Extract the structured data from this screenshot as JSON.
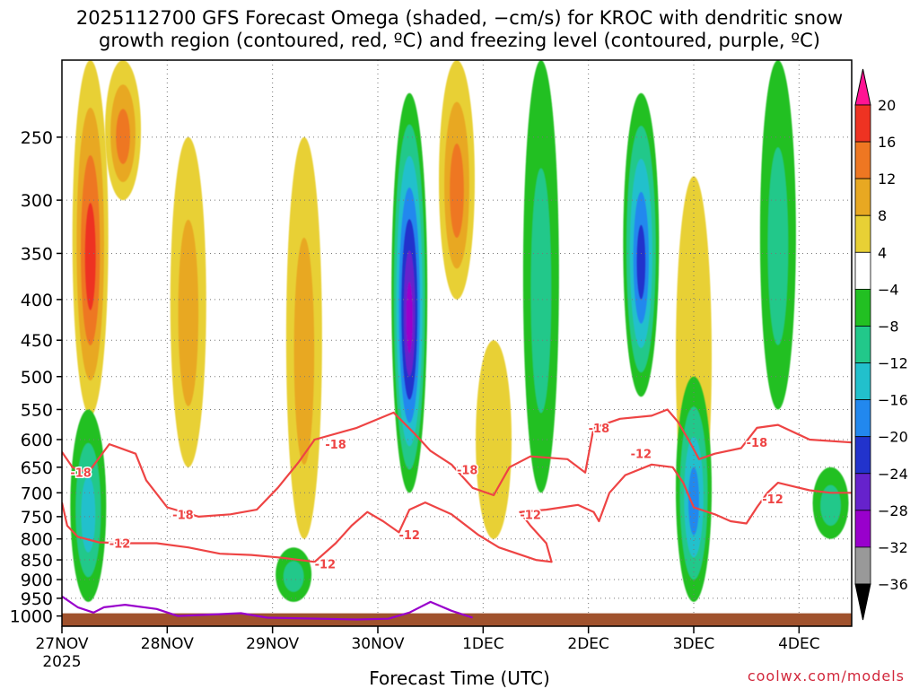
{
  "title": {
    "line1": "2025112700 GFS Forecast Omega (shaded, −cm/s) for KROC with dendritic snow",
    "line2": "growth region (contoured, red, ºC) and freezing level (contoured, purple, ºC)"
  },
  "footer": {
    "xlabel": "Forecast Time (UTC)",
    "credit": "coolwx.com/models"
  },
  "colors": {
    "dgz_contour": "#ee4444",
    "freezing_contour": "#9900cc",
    "terrain": "#a0522d",
    "grid": "#777777"
  },
  "chart_data": {
    "type": "heatmap",
    "title": "2025112700 GFS Forecast Omega (shaded, −cm/s) for KROC with dendritic snow growth region (contoured, red, ºC) and freezing level (contoured, purple, ºC)",
    "xlabel": "Forecast Time (UTC)",
    "ylabel": "",
    "x_ticks": [
      "27NOV",
      "28NOV",
      "29NOV",
      "30NOV",
      "1DEC",
      "2DEC",
      "3DEC",
      "4DEC"
    ],
    "x_tick_sublabel": "2025",
    "x_range_days": [
      0,
      7.5
    ],
    "y_ticks": [
      250,
      300,
      350,
      400,
      450,
      500,
      550,
      600,
      650,
      700,
      750,
      800,
      850,
      900,
      950,
      1000
    ],
    "y_range_hpa": [
      200,
      1030
    ],
    "y_scale": "log-pressure (inverted)",
    "grid": "dotted",
    "colorbar": {
      "labels": [
        "20",
        "16",
        "12",
        "8",
        "4",
        "−4",
        "−8",
        "−12",
        "−16",
        "−20",
        "−24",
        "−28",
        "−32",
        "−36"
      ],
      "levels": [
        20,
        16,
        12,
        8,
        4,
        -4,
        -8,
        -12,
        -16,
        -20,
        -24,
        -28,
        -32,
        -36
      ],
      "colors": [
        "#ff1493",
        "#ee3322",
        "#ee7722",
        "#e8a822",
        "#e8d035",
        "#ffffff",
        "#22c022",
        "#22c88a",
        "#22c0cc",
        "#2288ee",
        "#2233cc",
        "#6622cc",
        "#9900cc",
        "#999999",
        "#000000"
      ]
    },
    "omega_features": [
      {
        "sign": "positive",
        "day": 0.27,
        "p_top": 200,
        "p_bottom": 560,
        "peak": 16
      },
      {
        "sign": "positive",
        "day": 0.58,
        "p_top": 200,
        "p_bottom": 300,
        "peak": 12
      },
      {
        "sign": "positive",
        "day": 1.2,
        "p_top": 250,
        "p_bottom": 650,
        "peak": 8
      },
      {
        "sign": "positive",
        "day": 2.3,
        "p_top": 250,
        "p_bottom": 800,
        "peak": 8
      },
      {
        "sign": "positive",
        "day": 3.75,
        "p_top": 200,
        "p_bottom": 400,
        "peak": 12
      },
      {
        "sign": "positive",
        "day": 4.1,
        "p_top": 450,
        "p_bottom": 800,
        "peak": 4
      },
      {
        "sign": "positive",
        "day": 6.0,
        "p_top": 280,
        "p_bottom": 800,
        "peak": 4
      },
      {
        "sign": "negative",
        "day": 0.25,
        "p_top": 550,
        "p_bottom": 960,
        "peak": -12
      },
      {
        "sign": "negative",
        "day": 2.2,
        "p_top": 820,
        "p_bottom": 960,
        "peak": -8
      },
      {
        "sign": "negative",
        "day": 3.3,
        "p_top": 220,
        "p_bottom": 700,
        "peak": -28
      },
      {
        "sign": "negative",
        "day": 4.55,
        "p_top": 200,
        "p_bottom": 700,
        "peak": -8
      },
      {
        "sign": "negative",
        "day": 5.5,
        "p_top": 220,
        "p_bottom": 530,
        "peak": -20
      },
      {
        "sign": "negative",
        "day": 6.0,
        "p_top": 500,
        "p_bottom": 960,
        "peak": -16
      },
      {
        "sign": "negative",
        "day": 6.8,
        "p_top": 200,
        "p_bottom": 550,
        "peak": -8
      },
      {
        "sign": "negative",
        "day": 7.3,
        "p_top": 650,
        "p_bottom": 800,
        "peak": -8
      }
    ],
    "contour_labels": [
      {
        "text": "-18",
        "day": 0.18,
        "p": 660
      },
      {
        "text": "-18",
        "day": 1.15,
        "p": 745
      },
      {
        "text": "-12",
        "day": 0.55,
        "p": 810
      },
      {
        "text": "-12",
        "day": 2.5,
        "p": 860
      },
      {
        "text": "-18",
        "day": 2.6,
        "p": 608
      },
      {
        "text": "-12",
        "day": 3.3,
        "p": 790
      },
      {
        "text": "-18",
        "day": 3.85,
        "p": 655
      },
      {
        "text": "-12",
        "day": 4.45,
        "p": 745
      },
      {
        "text": "-18",
        "day": 5.1,
        "p": 580
      },
      {
        "text": "-12",
        "day": 5.5,
        "p": 625
      },
      {
        "text": "-18",
        "day": 6.6,
        "p": 605
      },
      {
        "text": "-12",
        "day": 6.75,
        "p": 712
      }
    ],
    "minus18_contour": [
      [
        0,
        622
      ],
      [
        0.1,
        650
      ],
      [
        0.25,
        660
      ],
      [
        0.45,
        608
      ],
      [
        0.7,
        625
      ],
      [
        0.8,
        675
      ],
      [
        1.0,
        730
      ],
      [
        1.3,
        750
      ],
      [
        1.6,
        745
      ],
      [
        1.85,
        735
      ],
      [
        2.05,
        690
      ],
      [
        2.25,
        640
      ],
      [
        2.4,
        600
      ],
      [
        2.8,
        580
      ],
      [
        3.15,
        555
      ],
      [
        3.35,
        590
      ],
      [
        3.5,
        620
      ],
      [
        3.7,
        645
      ],
      [
        3.9,
        690
      ],
      [
        4.1,
        705
      ],
      [
        4.25,
        650
      ],
      [
        4.45,
        630
      ],
      [
        4.8,
        635
      ],
      [
        4.97,
        660
      ],
      [
        5.05,
        580
      ],
      [
        5.3,
        565
      ],
      [
        5.6,
        560
      ],
      [
        5.75,
        550
      ],
      [
        5.85,
        570
      ],
      [
        5.95,
        600
      ],
      [
        6.05,
        635
      ],
      [
        6.2,
        625
      ],
      [
        6.45,
        615
      ],
      [
        6.6,
        580
      ],
      [
        6.8,
        575
      ],
      [
        7.1,
        600
      ],
      [
        7.5,
        605
      ]
    ],
    "minus12_contour": [
      [
        0,
        720
      ],
      [
        0.05,
        770
      ],
      [
        0.15,
        795
      ],
      [
        0.35,
        808
      ],
      [
        0.6,
        810
      ],
      [
        0.9,
        810
      ],
      [
        1.2,
        820
      ],
      [
        1.5,
        835
      ],
      [
        1.8,
        838
      ],
      [
        2.1,
        845
      ],
      [
        2.4,
        855
      ],
      [
        2.6,
        810
      ],
      [
        2.75,
        770
      ],
      [
        2.9,
        740
      ],
      [
        3.05,
        760
      ],
      [
        3.2,
        785
      ],
      [
        3.3,
        735
      ],
      [
        3.45,
        720
      ],
      [
        3.7,
        745
      ],
      [
        3.95,
        790
      ],
      [
        4.15,
        820
      ],
      [
        4.5,
        850
      ],
      [
        4.65,
        855
      ],
      [
        4.6,
        810
      ],
      [
        4.45,
        770
      ],
      [
        4.35,
        740
      ],
      [
        4.6,
        735
      ],
      [
        4.9,
        725
      ],
      [
        5.05,
        740
      ],
      [
        5.1,
        760
      ],
      [
        5.2,
        700
      ],
      [
        5.35,
        665
      ],
      [
        5.6,
        645
      ],
      [
        5.8,
        650
      ],
      [
        5.9,
        680
      ],
      [
        6.0,
        730
      ],
      [
        6.2,
        745
      ],
      [
        6.35,
        760
      ],
      [
        6.5,
        765
      ],
      [
        6.6,
        730
      ],
      [
        6.7,
        700
      ],
      [
        6.8,
        680
      ],
      [
        7.1,
        695
      ],
      [
        7.3,
        700
      ],
      [
        7.5,
        700
      ]
    ],
    "freezing_level_contour": [
      [
        0,
        945
      ],
      [
        0.15,
        975
      ],
      [
        0.3,
        990
      ],
      [
        0.4,
        975
      ],
      [
        0.6,
        968
      ],
      [
        0.9,
        980
      ],
      [
        1.1,
        1000
      ],
      [
        1.7,
        992
      ],
      [
        1.95,
        1005
      ],
      [
        2.8,
        1010
      ],
      [
        3.1,
        1008
      ],
      [
        3.3,
        990
      ],
      [
        3.5,
        960
      ],
      [
        3.7,
        985
      ],
      [
        3.9,
        1005
      ]
    ],
    "surface_pressure_hpa": 1000
  }
}
